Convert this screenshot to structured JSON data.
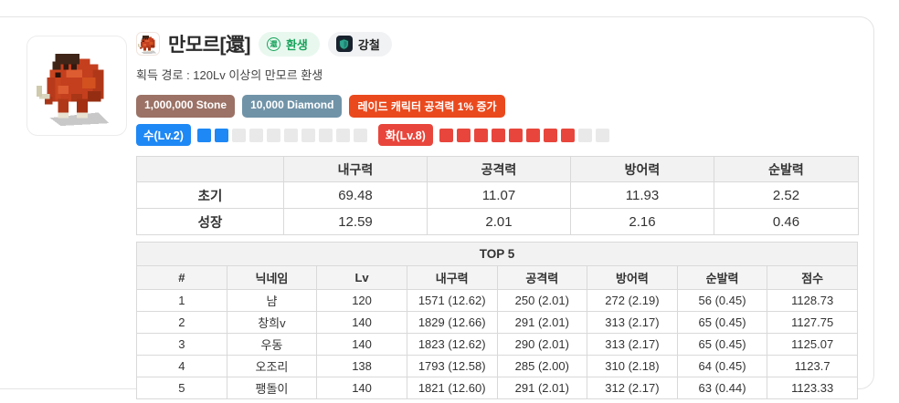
{
  "header": {
    "title": "만모르[還]",
    "rebirth_badge": {
      "icon": "還",
      "label": "환생"
    },
    "steel_badge": {
      "label": "강철"
    },
    "acquisition": "획득 경로 : 120Lv 이상의 만모르 환생"
  },
  "cost_badges": [
    {
      "label": "1,000,000 Stone",
      "color": "#9b7265"
    },
    {
      "label": "10,000 Diamond",
      "color": "#7093a8"
    },
    {
      "label": "레이드 캐릭터 공격력 1% 증가",
      "color": "#ea491d"
    }
  ],
  "element_gauges": [
    {
      "label": "수(Lv.2)",
      "level": 2,
      "max": 10,
      "color": "#1e88f5"
    },
    {
      "label": "화(Lv.8)",
      "level": 8,
      "max": 10,
      "color": "#e8463c"
    }
  ],
  "stats_table": {
    "columns": [
      "",
      "내구력",
      "공격력",
      "방어력",
      "순발력"
    ],
    "rows": [
      {
        "label": "초기",
        "values": [
          "69.48",
          "11.07",
          "11.93",
          "2.52"
        ]
      },
      {
        "label": "성장",
        "values": [
          "12.59",
          "2.01",
          "2.16",
          "0.46"
        ]
      }
    ]
  },
  "top5_table": {
    "title": "TOP 5",
    "columns": [
      "#",
      "닉네임",
      "Lv",
      "내구력",
      "공격력",
      "방어력",
      "순발력",
      "점수"
    ],
    "rows": [
      [
        "1",
        "냠",
        "120",
        "1571 (12.62)",
        "250 (2.01)",
        "272 (2.19)",
        "56 (0.45)",
        "1128.73"
      ],
      [
        "2",
        "창희v",
        "140",
        "1829 (12.66)",
        "291 (2.01)",
        "313 (2.17)",
        "65 (0.45)",
        "1127.75"
      ],
      [
        "3",
        "우동",
        "140",
        "1823 (12.62)",
        "290 (2.01)",
        "313 (2.17)",
        "65 (0.45)",
        "1125.07"
      ],
      [
        "4",
        "오조리",
        "138",
        "1793 (12.58)",
        "285 (2.00)",
        "310 (2.18)",
        "64 (0.45)",
        "1123.7"
      ],
      [
        "5",
        "팽돌이",
        "140",
        "1821 (12.60)",
        "291 (2.01)",
        "312 (2.17)",
        "63 (0.44)",
        "1123.33"
      ]
    ]
  }
}
